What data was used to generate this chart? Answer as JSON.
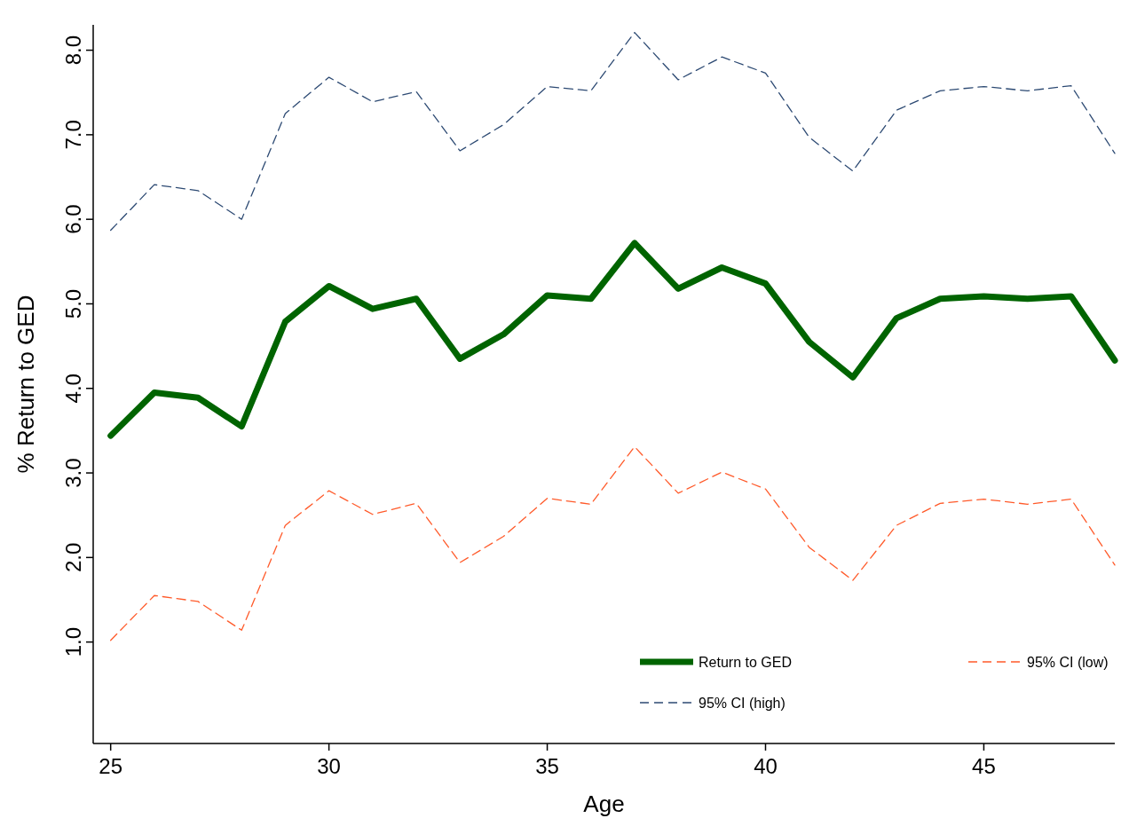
{
  "chart_data": {
    "type": "line",
    "xlabel": "Age",
    "ylabel": "% Return to GED",
    "x": [
      25,
      26,
      27,
      28,
      29,
      30,
      31,
      32,
      33,
      34,
      35,
      36,
      37,
      38,
      39,
      40,
      41,
      42,
      43,
      44,
      45,
      46,
      47,
      48
    ],
    "series": [
      {
        "name": "Return to GED",
        "color": "#006400",
        "line_style": "solid",
        "values": [
          3.44,
          3.95,
          3.89,
          3.55,
          4.79,
          5.21,
          4.94,
          5.06,
          4.35,
          4.64,
          5.1,
          5.06,
          5.72,
          5.18,
          5.43,
          5.24,
          4.55,
          4.13,
          4.83,
          5.06,
          5.09,
          5.06,
          5.09,
          4.33
        ]
      },
      {
        "name": "95% CI (low)",
        "color": "#ff5a2a",
        "line_style": "dashed",
        "values": [
          1.02,
          1.55,
          1.48,
          1.14,
          2.38,
          2.79,
          2.51,
          2.64,
          1.94,
          2.25,
          2.7,
          2.63,
          3.31,
          2.76,
          3.01,
          2.81,
          2.12,
          1.73,
          2.38,
          2.64,
          2.69,
          2.63,
          2.69,
          1.91
        ]
      },
      {
        "name": "95% CI (high)",
        "color": "#2d4a73",
        "line_style": "dashed",
        "values": [
          5.87,
          6.41,
          6.34,
          6.0,
          7.25,
          7.68,
          7.39,
          7.51,
          6.81,
          7.12,
          7.57,
          7.52,
          8.21,
          7.65,
          7.92,
          7.73,
          6.97,
          6.57,
          7.29,
          7.52,
          7.57,
          7.52,
          7.58,
          6.78
        ]
      }
    ],
    "xlim": [
      24.6,
      48
    ],
    "ylim": [
      -0.2,
      8.3
    ],
    "xticks": [
      25,
      30,
      35,
      40,
      45
    ],
    "yticks": [
      {
        "value": 1,
        "label": "1.0"
      },
      {
        "value": 2,
        "label": "2.0"
      },
      {
        "value": 3,
        "label": "3.0"
      },
      {
        "value": 4,
        "label": "4.0"
      },
      {
        "value": 5,
        "label": "5.0"
      },
      {
        "value": 6,
        "label": "6.0"
      },
      {
        "value": 7,
        "label": "7.0"
      },
      {
        "value": 8,
        "label": "8.0"
      }
    ],
    "legend": "bottom right",
    "grid": false,
    "marker": "none"
  }
}
